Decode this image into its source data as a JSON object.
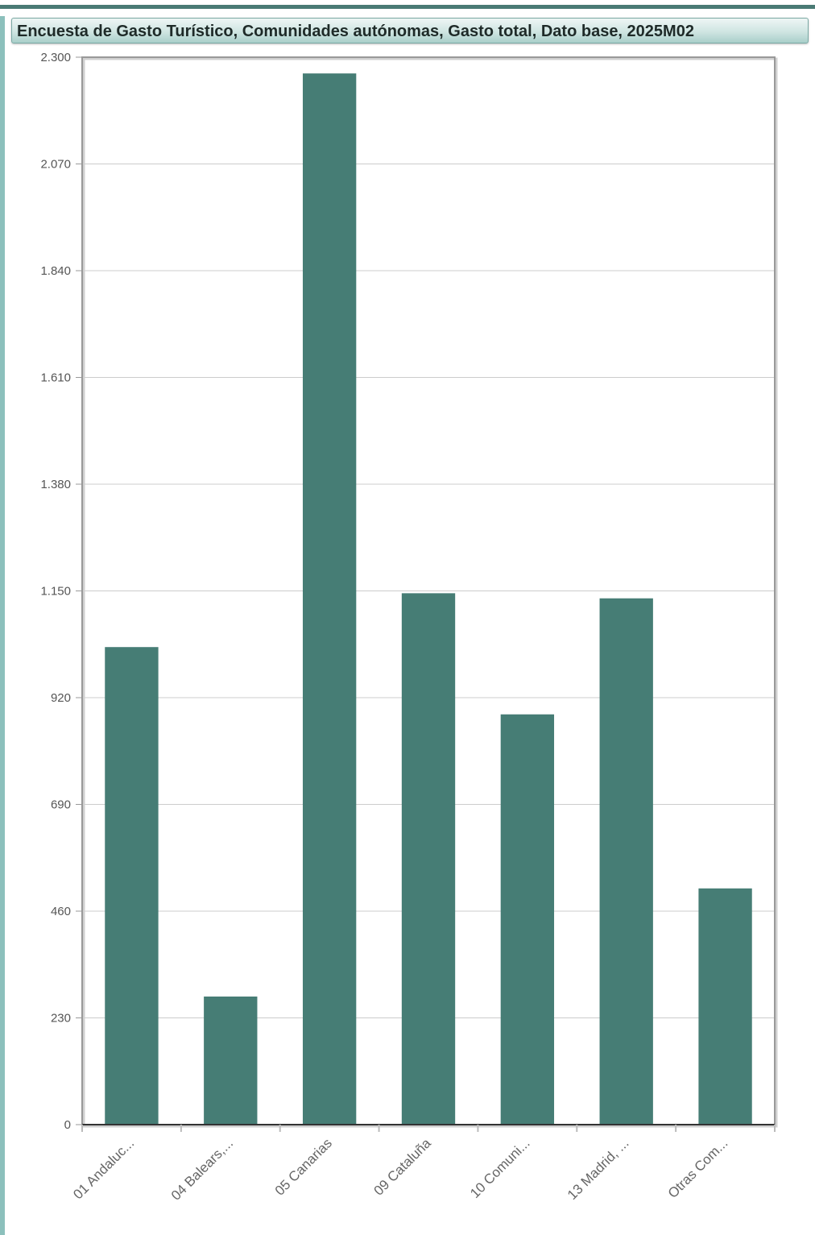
{
  "chart_data": {
    "type": "bar",
    "title": "Encuesta de Gasto Turístico, Comunidades autónomas, Gasto total, Dato base, 2025M02",
    "categories": [
      "01 Andaluc...",
      "04 Balears,...",
      "05 Canarias",
      "09 Cataluña",
      "10 Comuni...",
      "13 Madrid, ...",
      "Otras Com..."
    ],
    "values": [
      1029,
      276,
      2265,
      1145,
      884,
      1134,
      509
    ],
    "ylim": [
      0,
      2300
    ],
    "yticks": [
      0,
      230,
      460,
      690,
      920,
      1150,
      1380,
      1610,
      1840,
      2070,
      2300
    ],
    "ytick_labels": [
      "0",
      "230",
      "460",
      "690",
      "920",
      "1.150",
      "1.380",
      "1.610",
      "1.840",
      "2.070",
      "2.300"
    ],
    "xlabel": "",
    "ylabel": "",
    "grid": true,
    "bar_color": "#467d75"
  }
}
